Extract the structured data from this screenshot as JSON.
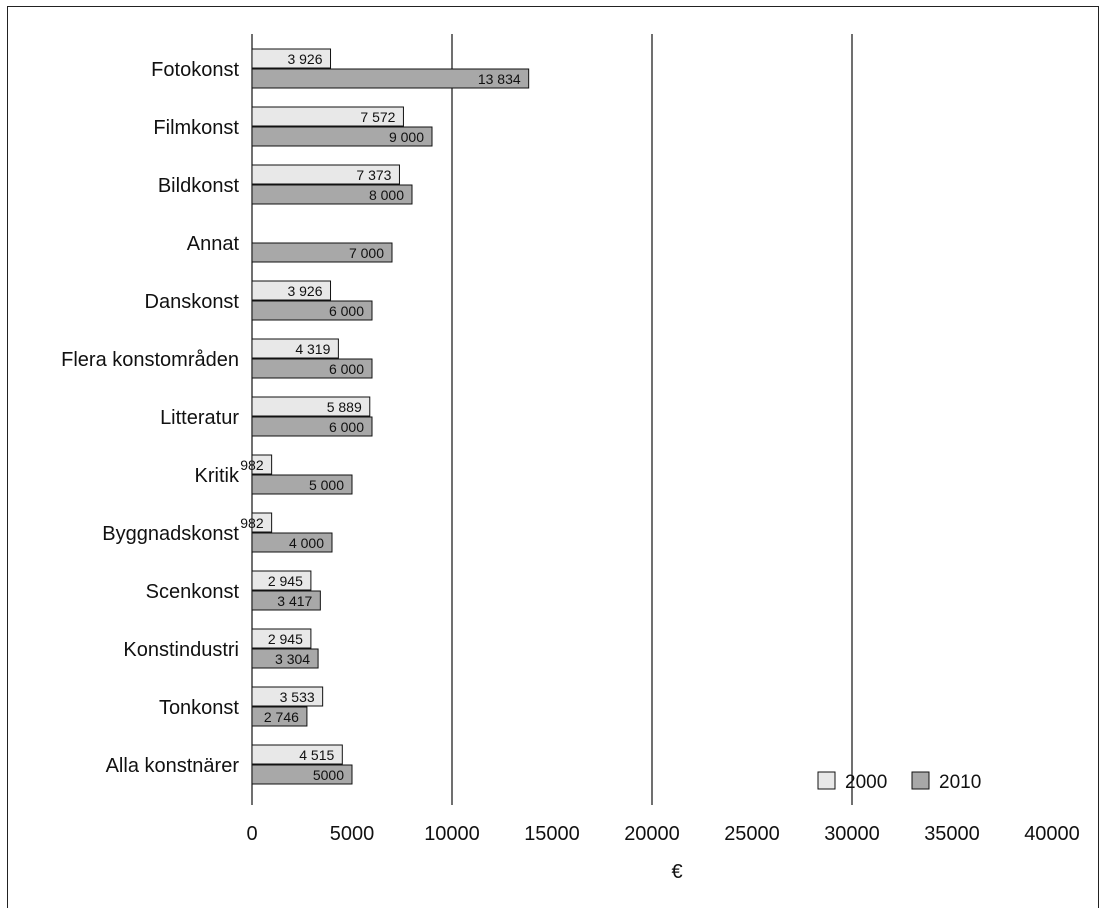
{
  "chart_data": {
    "type": "bar",
    "orientation": "horizontal",
    "categories": [
      "Fotokonst",
      "Filmkonst",
      "Bildkonst",
      "Annat",
      "Danskonst",
      "Flera konstområden",
      "Litteratur",
      "Kritik",
      "Byggnadskonst",
      "Scenkonst",
      "Konstindustri",
      "Tonkonst",
      "Alla konstnärer"
    ],
    "series": [
      {
        "name": "2000",
        "color": "#e8e8e8",
        "values": [
          3926,
          7572,
          7373,
          null,
          3926,
          4319,
          5889,
          982,
          982,
          2945,
          2945,
          3533,
          4515
        ],
        "labels": [
          "3 926",
          "7 572",
          "7 373",
          "",
          "3 926",
          "4 319",
          "5 889",
          "982",
          "982",
          "2 945",
          "2 945",
          "3 533",
          "4 515"
        ]
      },
      {
        "name": "2010",
        "color": "#a8a8a8",
        "values": [
          13834,
          9000,
          8000,
          7000,
          6000,
          6000,
          6000,
          5000,
          4000,
          3417,
          3304,
          2746,
          5000
        ],
        "labels": [
          "13 834",
          "9 000",
          "8 000",
          "7 000",
          "6 000",
          "6 000",
          "6 000",
          "5 000",
          "4 000",
          "3 417",
          "3 304",
          "2 746",
          "5000"
        ]
      }
    ],
    "xticks": [
      0,
      5000,
      10000,
      15000,
      20000,
      25000,
      30000,
      35000,
      40000
    ],
    "xtick_labels": [
      "0",
      "5000",
      "10000",
      "15000",
      "20000",
      "25000",
      "30000",
      "35000",
      "40000"
    ],
    "xlim": [
      0,
      40000
    ],
    "xlabel": "€",
    "vertical_lines": [
      10000,
      20000,
      30000
    ],
    "legend_position": "bottom-right"
  }
}
